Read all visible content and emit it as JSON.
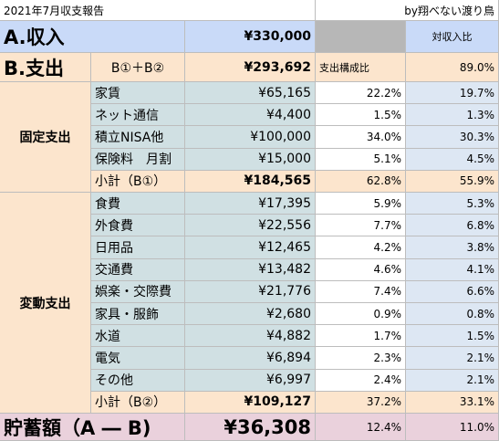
{
  "header": {
    "title": "2021年7月収支報告",
    "author": "by翔べない渡り鳥"
  },
  "income": {
    "label": "A.収入",
    "amount": "¥330,000",
    "ratio_header": "対収入比"
  },
  "expense": {
    "label": "B.支出",
    "formula": "B①＋B②",
    "amount": "¥293,692",
    "composition_header": "支出構成比",
    "ratio": "89.0%"
  },
  "fixed": {
    "label": "固定支出",
    "items": [
      [
        "家賃",
        "¥65,165",
        "22.2%",
        "19.7%"
      ],
      [
        "ネット通信",
        "¥4,400",
        "1.5%",
        "1.3%"
      ],
      [
        "積立NISA他",
        "¥100,000",
        "34.0%",
        "30.3%"
      ],
      [
        "保険料　月割",
        "¥15,000",
        "5.1%",
        "4.5%"
      ]
    ],
    "subtotal": [
      "小計（B①）",
      "¥184,565",
      "62.8%",
      "55.9%"
    ]
  },
  "variable": {
    "label": "変動支出",
    "items": [
      [
        "食費",
        "¥17,395",
        "5.9%",
        "5.3%"
      ],
      [
        "外食費",
        "¥22,556",
        "7.7%",
        "6.8%"
      ],
      [
        "日用品",
        "¥12,465",
        "4.2%",
        "3.8%"
      ],
      [
        "交通費",
        "¥13,482",
        "4.6%",
        "4.1%"
      ],
      [
        "娯楽・交際費",
        "¥21,776",
        "7.4%",
        "6.6%"
      ],
      [
        "家具・服飾",
        "¥2,680",
        "0.9%",
        "0.8%"
      ],
      [
        "水道",
        "¥4,882",
        "1.7%",
        "1.5%"
      ],
      [
        "電気",
        "¥6,894",
        "2.3%",
        "2.1%"
      ],
      [
        "その他",
        "¥6,997",
        "2.4%",
        "2.1%"
      ]
    ],
    "subtotal": [
      "小計（B②）",
      "¥109,127",
      "37.2%",
      "33.1%"
    ]
  },
  "savings": {
    "label": "貯蓄額（A ― B)",
    "amount": "¥36,308",
    "composition": "12.4%",
    "ratio": "11.0%"
  }
}
